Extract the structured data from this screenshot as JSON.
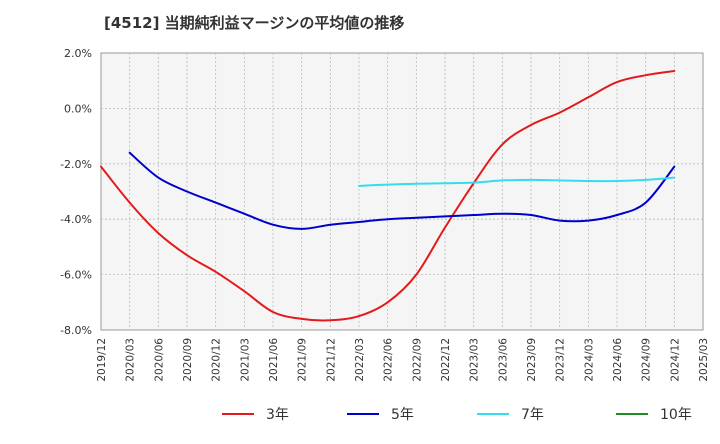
{
  "chart_data": {
    "type": "line",
    "title": "[4512]  当期純利益マージンの平均値の推移",
    "xlabel": "",
    "ylabel": "",
    "ylim": [
      -8.0,
      2.0
    ],
    "y_ticks": [
      "2.0%",
      "0.0%",
      "-2.0%",
      "-4.0%",
      "-6.0%",
      "-8.0%"
    ],
    "x_ticks": [
      "2019/12",
      "2020/03",
      "2020/06",
      "2020/09",
      "2020/12",
      "2021/03",
      "2021/06",
      "2021/09",
      "2021/12",
      "2022/03",
      "2022/06",
      "2022/09",
      "2022/12",
      "2023/03",
      "2023/06",
      "2023/09",
      "2023/12",
      "2024/03",
      "2024/06",
      "2024/09",
      "2024/12",
      "2025/03"
    ],
    "grid": true,
    "legend_position": "bottom",
    "series": [
      {
        "name": "3年",
        "color": "#e31a1c",
        "points": [
          [
            "2019/12",
            -2.1
          ],
          [
            "2020/03",
            -3.4
          ],
          [
            "2020/06",
            -4.5
          ],
          [
            "2020/09",
            -5.3
          ],
          [
            "2020/12",
            -5.9
          ],
          [
            "2021/03",
            -6.6
          ],
          [
            "2021/06",
            -7.35
          ],
          [
            "2021/09",
            -7.6
          ],
          [
            "2021/12",
            -7.65
          ],
          [
            "2022/03",
            -7.5
          ],
          [
            "2022/06",
            -7.0
          ],
          [
            "2022/09",
            -6.0
          ],
          [
            "2022/12",
            -4.3
          ],
          [
            "2023/03",
            -2.7
          ],
          [
            "2023/06",
            -1.3
          ],
          [
            "2023/09",
            -0.6
          ],
          [
            "2023/12",
            -0.15
          ],
          [
            "2024/03",
            0.4
          ],
          [
            "2024/06",
            0.95
          ],
          [
            "2024/09",
            1.2
          ],
          [
            "2024/12",
            1.35
          ]
        ]
      },
      {
        "name": "5年",
        "color": "#0000cc",
        "points": [
          [
            "2020/03",
            -1.6
          ],
          [
            "2020/06",
            -2.5
          ],
          [
            "2020/09",
            -3.0
          ],
          [
            "2020/12",
            -3.4
          ],
          [
            "2021/03",
            -3.8
          ],
          [
            "2021/06",
            -4.2
          ],
          [
            "2021/09",
            -4.35
          ],
          [
            "2021/12",
            -4.2
          ],
          [
            "2022/03",
            -4.1
          ],
          [
            "2022/06",
            -4.0
          ],
          [
            "2022/09",
            -3.95
          ],
          [
            "2022/12",
            -3.9
          ],
          [
            "2023/03",
            -3.85
          ],
          [
            "2023/06",
            -3.8
          ],
          [
            "2023/09",
            -3.85
          ],
          [
            "2023/12",
            -4.05
          ],
          [
            "2024/03",
            -4.05
          ],
          [
            "2024/06",
            -3.85
          ],
          [
            "2024/09",
            -3.4
          ],
          [
            "2024/12",
            -2.1
          ]
        ]
      },
      {
        "name": "7年",
        "color": "#33ddee",
        "points": [
          [
            "2022/03",
            -2.8
          ],
          [
            "2022/06",
            -2.75
          ],
          [
            "2022/09",
            -2.72
          ],
          [
            "2022/12",
            -2.7
          ],
          [
            "2023/03",
            -2.68
          ],
          [
            "2023/06",
            -2.6
          ],
          [
            "2023/09",
            -2.58
          ],
          [
            "2023/12",
            -2.6
          ],
          [
            "2024/03",
            -2.62
          ],
          [
            "2024/06",
            -2.62
          ],
          [
            "2024/09",
            -2.58
          ],
          [
            "2024/12",
            -2.5
          ]
        ]
      },
      {
        "name": "10年",
        "color": "#228b22",
        "points": []
      }
    ]
  }
}
